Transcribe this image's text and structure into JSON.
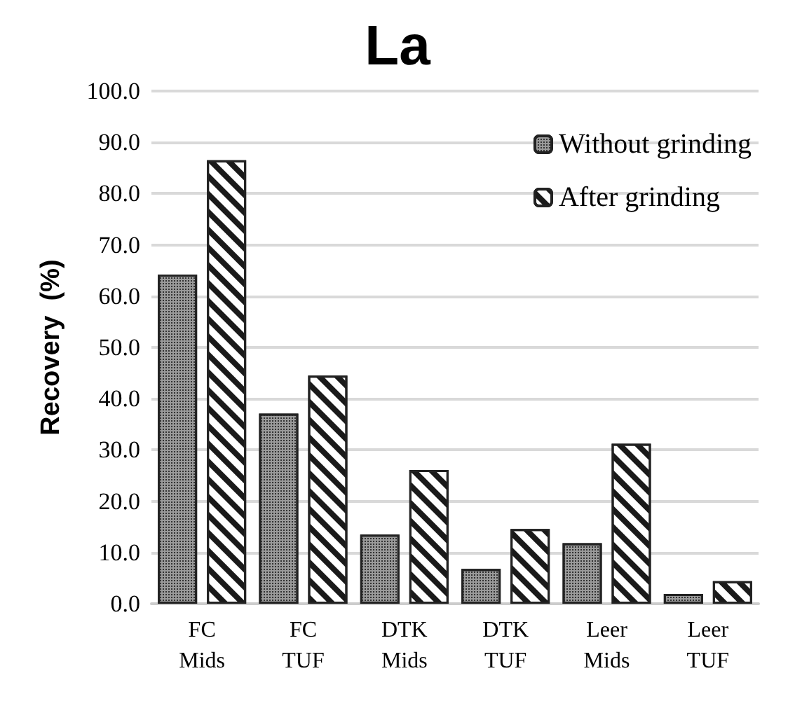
{
  "chart_data": {
    "type": "bar",
    "title": "La",
    "ylabel": "Recovery  (%)",
    "categories": [
      "FC\nMids",
      "FC\nTUF",
      "DTK\nMids",
      "DTK\nTUF",
      "Leer\nMids",
      "Leer\nTUF"
    ],
    "series": [
      {
        "name": "Without grinding",
        "color": "#9a9a9a",
        "values": [
          64.2,
          37.1,
          13.5,
          6.8,
          11.8,
          1.9
        ]
      },
      {
        "name": "After grinding",
        "color": "#ffffff",
        "values": [
          86.5,
          44.5,
          26.1,
          14.6,
          31.2,
          4.4
        ]
      }
    ],
    "ylim": [
      0,
      100
    ],
    "yticks": [
      {
        "value": 0,
        "label": "0.0"
      },
      {
        "value": 10,
        "label": "10.0"
      },
      {
        "value": 20,
        "label": "20.0"
      },
      {
        "value": 30,
        "label": "30.0"
      },
      {
        "value": 40,
        "label": "40.0"
      },
      {
        "value": 50,
        "label": "50.0"
      },
      {
        "value": 60,
        "label": "60.0"
      },
      {
        "value": 70,
        "label": "70.0"
      },
      {
        "value": 80,
        "label": "80.0"
      },
      {
        "value": 90,
        "label": "90.0"
      },
      {
        "value": 100,
        "label": "100.0"
      }
    ],
    "grid": "y",
    "legend": "top right"
  }
}
